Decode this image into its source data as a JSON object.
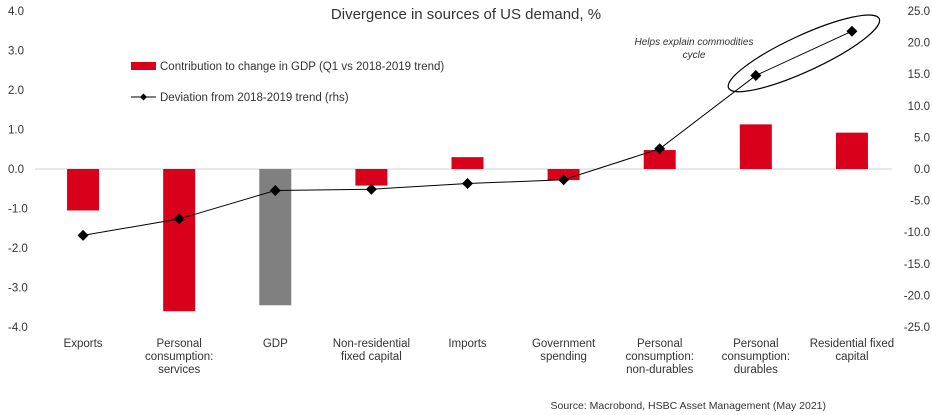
{
  "chart_data": {
    "type": "bar",
    "title": "Divergence in sources of US demand, %",
    "categories": [
      [
        "Exports"
      ],
      [
        "Personal",
        "consumption:",
        "services"
      ],
      [
        "GDP"
      ],
      [
        "Non-residential",
        "fixed capital"
      ],
      [
        "Imports"
      ],
      [
        "Government",
        "spending"
      ],
      [
        "Personal",
        "consumption:",
        "non-durables"
      ],
      [
        "Personal",
        "consumption:",
        "durables"
      ],
      [
        "Residential fixed",
        "capital"
      ]
    ],
    "series": [
      {
        "name": "Contribution to change in GDP (Q1 vs 2018-2019 trend)",
        "axis": "left",
        "mark": "bar",
        "color": "#d9001b",
        "highlight": {
          "index": 2,
          "color": "#808080"
        },
        "values": [
          -1.05,
          -3.6,
          -3.45,
          -0.42,
          0.3,
          -0.28,
          0.48,
          1.13,
          0.92
        ]
      },
      {
        "name": "Deviation from 2018-2019 trend (rhs)",
        "axis": "right",
        "mark": "line-diamond",
        "color": "#000000",
        "values": [
          -10.5,
          -7.9,
          -3.4,
          -3.2,
          -2.3,
          -1.7,
          3.2,
          14.8,
          21.8
        ]
      }
    ],
    "y_left": {
      "min": -4.0,
      "max": 4.0,
      "step": 1.0,
      "decimals": 1
    },
    "y_right": {
      "min": -25.0,
      "max": 25.0,
      "step": 5.0,
      "decimals": 1
    },
    "legend": "top-left",
    "annotation": {
      "lines": [
        "Helps explain commodities",
        "cycle"
      ],
      "highlights": [
        7,
        8
      ]
    },
    "source": "Source: Macrobond, HSBC Asset Management (May 2021)"
  }
}
